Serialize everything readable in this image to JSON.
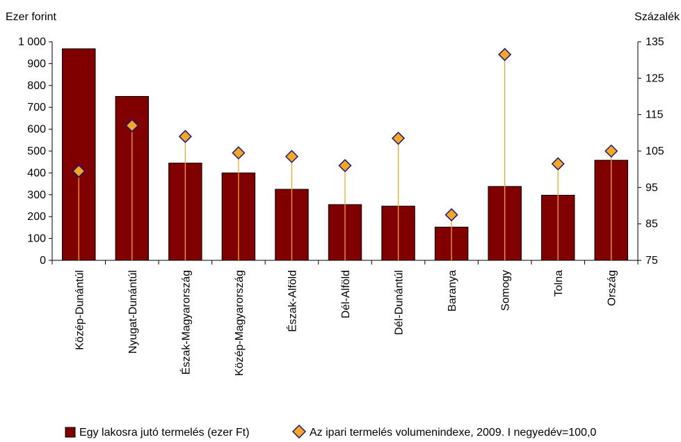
{
  "chart_data": {
    "type": "bar",
    "y_left_unit": "Ezer forint",
    "y_right_unit": "Százalék",
    "categories": [
      "Közép-Dunántúl",
      "Nyugat-Dunántúl",
      "Észak-Magyarország",
      "Közép-Magyarország",
      "Észak-Alföld",
      "Dél-Alföld",
      "Dél-Dunántúl",
      "Baranya",
      "Somogy",
      "Tolna",
      "Ország"
    ],
    "y_left_ticks": [
      "0",
      "100",
      "200",
      "300",
      "400",
      "500",
      "600",
      "700",
      "800",
      "900",
      "1 000"
    ],
    "y_right_ticks": [
      "75",
      "85",
      "95",
      "105",
      "115",
      "125",
      "135"
    ],
    "ylim_left": [
      0,
      1000
    ],
    "ylim_right": [
      75,
      135
    ],
    "grid": false,
    "legend_position": "bottom",
    "series": [
      {
        "name": "Egy lakosra jutó termelés (ezer Ft)",
        "type": "bar",
        "axis": "left",
        "color": "#800000",
        "values": [
          968,
          750,
          445,
          400,
          325,
          255,
          248,
          152,
          338,
          298,
          458
        ]
      },
      {
        "name": "Az ipari termelés volumenindexe, 2009. I negyedév=100,0",
        "type": "lollipop",
        "axis": "right",
        "color": "#F5A623",
        "values": [
          99.5,
          112,
          109,
          104.5,
          103.5,
          101,
          108.5,
          87.5,
          131.5,
          101.5,
          105
        ]
      }
    ]
  }
}
